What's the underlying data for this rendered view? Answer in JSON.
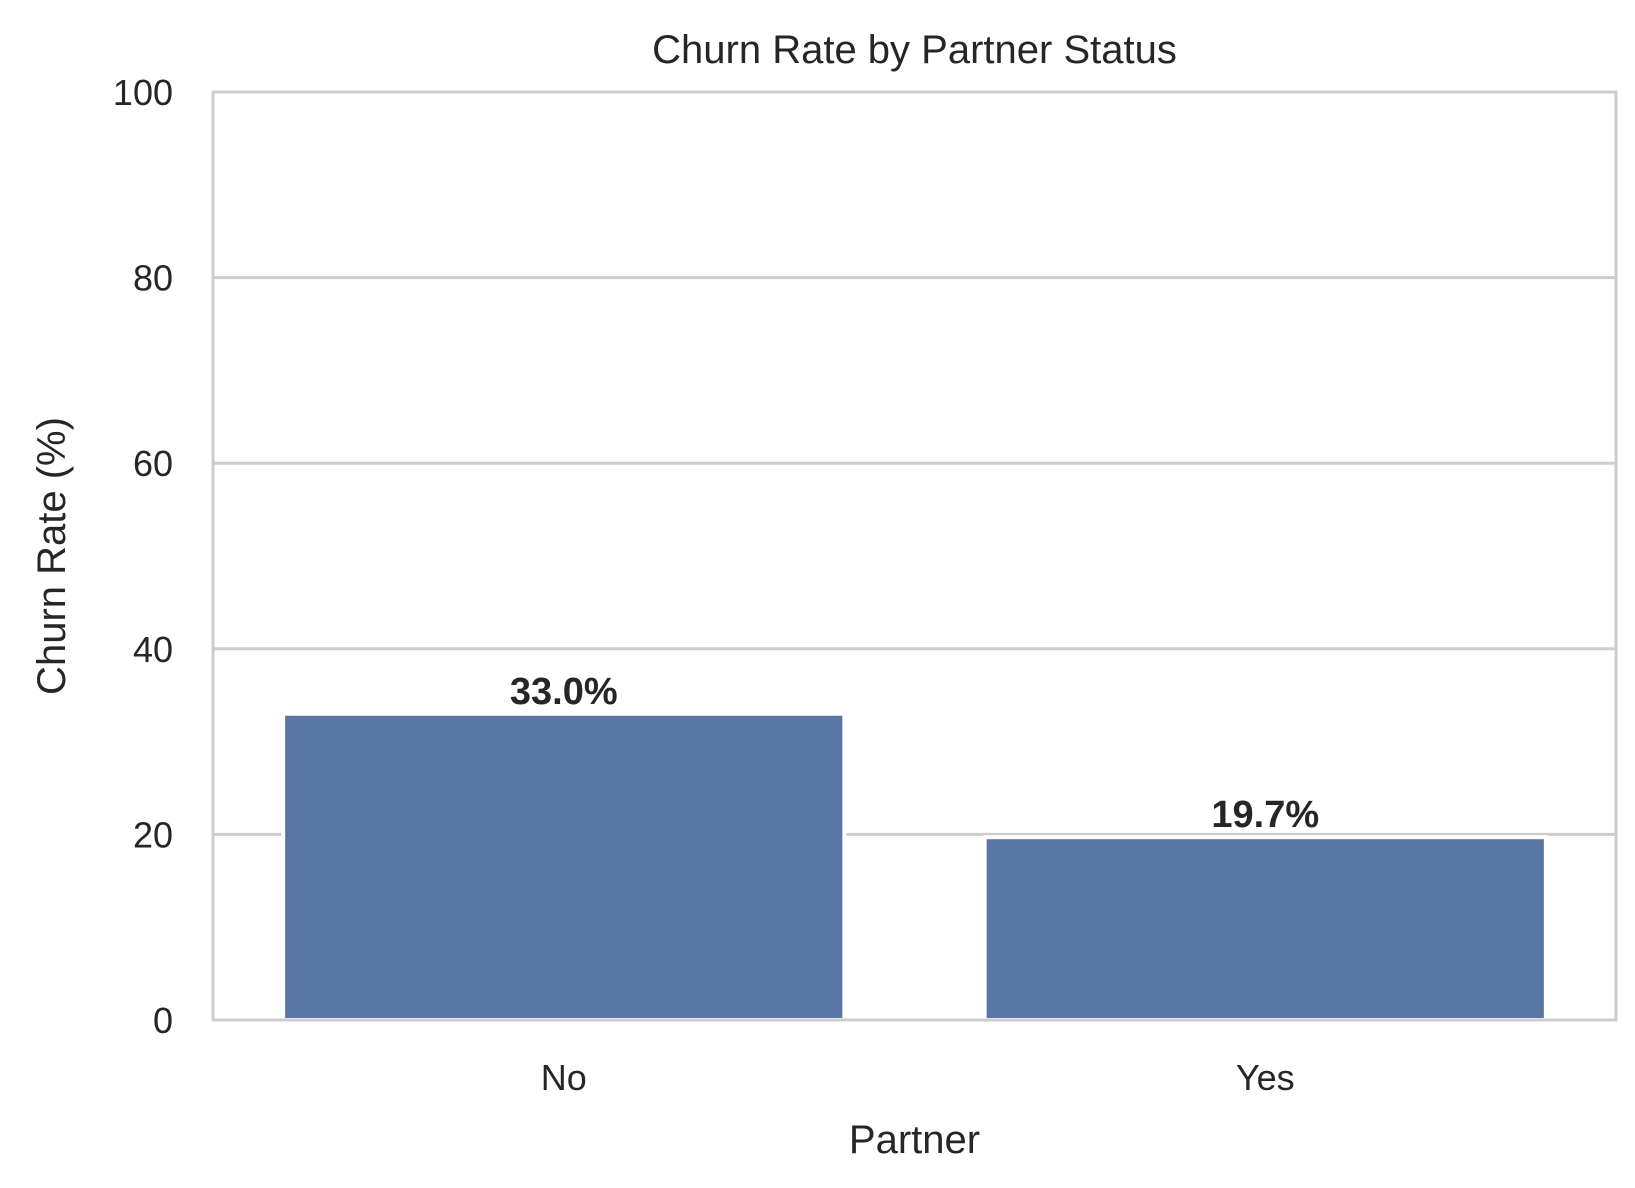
{
  "chart_data": {
    "type": "bar",
    "title": "Churn Rate by Partner Status",
    "xlabel": "Partner",
    "ylabel": "Churn Rate (%)",
    "categories": [
      "No",
      "Yes"
    ],
    "values": [
      33.0,
      19.7
    ],
    "data_labels": [
      "33.0%",
      "19.7%"
    ],
    "yticks": [
      0,
      20,
      40,
      60,
      80,
      100
    ],
    "ytick_labels": [
      "0",
      "20",
      "40",
      "60",
      "80",
      "100"
    ],
    "ylim": [
      0,
      100
    ],
    "grid": "horizontal",
    "bar_color": "#5975a4",
    "grid_color": "#cccccc"
  }
}
